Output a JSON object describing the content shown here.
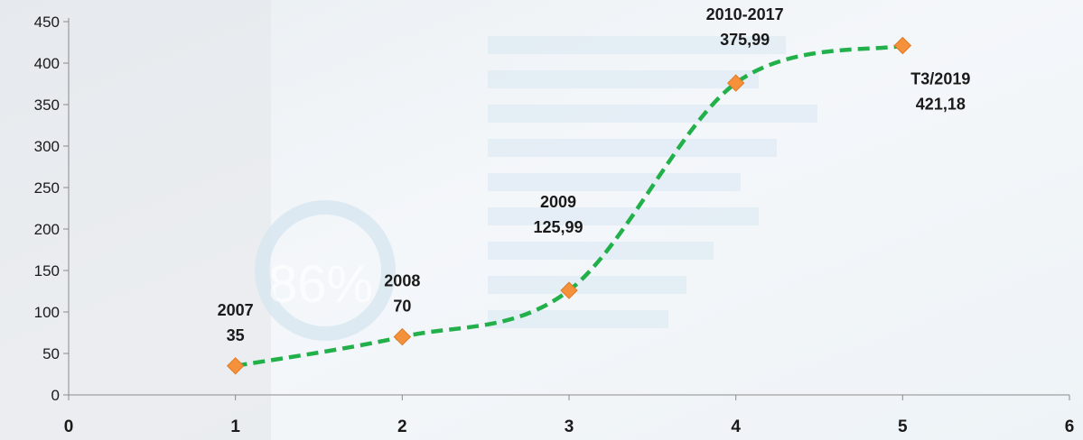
{
  "chart_data": {
    "type": "scatter",
    "x": [
      1,
      2,
      3,
      4,
      5
    ],
    "y": [
      35,
      70,
      125.99,
      375.99,
      421.18
    ],
    "point_labels": [
      [
        "2007",
        "35"
      ],
      [
        "2008",
        "70"
      ],
      [
        "2009",
        "125,99"
      ],
      [
        "2010-2017",
        "375,99"
      ],
      [
        "T3/2019",
        "421,18"
      ]
    ],
    "xlim": [
      0,
      6
    ],
    "ylim": [
      0,
      450
    ],
    "xticks": [
      0,
      1,
      2,
      3,
      4,
      5,
      6
    ],
    "yticks": [
      0,
      50,
      100,
      150,
      200,
      250,
      300,
      350,
      400,
      450
    ],
    "line_style": "smoothed dashed",
    "grid": false,
    "legend": "none",
    "colors": {
      "line": "#22b04a",
      "marker": "#f4913a",
      "marker_edge": "#e07a24",
      "axis": "#8a8a8a"
    }
  },
  "background": {
    "watermark_text": "86%"
  }
}
